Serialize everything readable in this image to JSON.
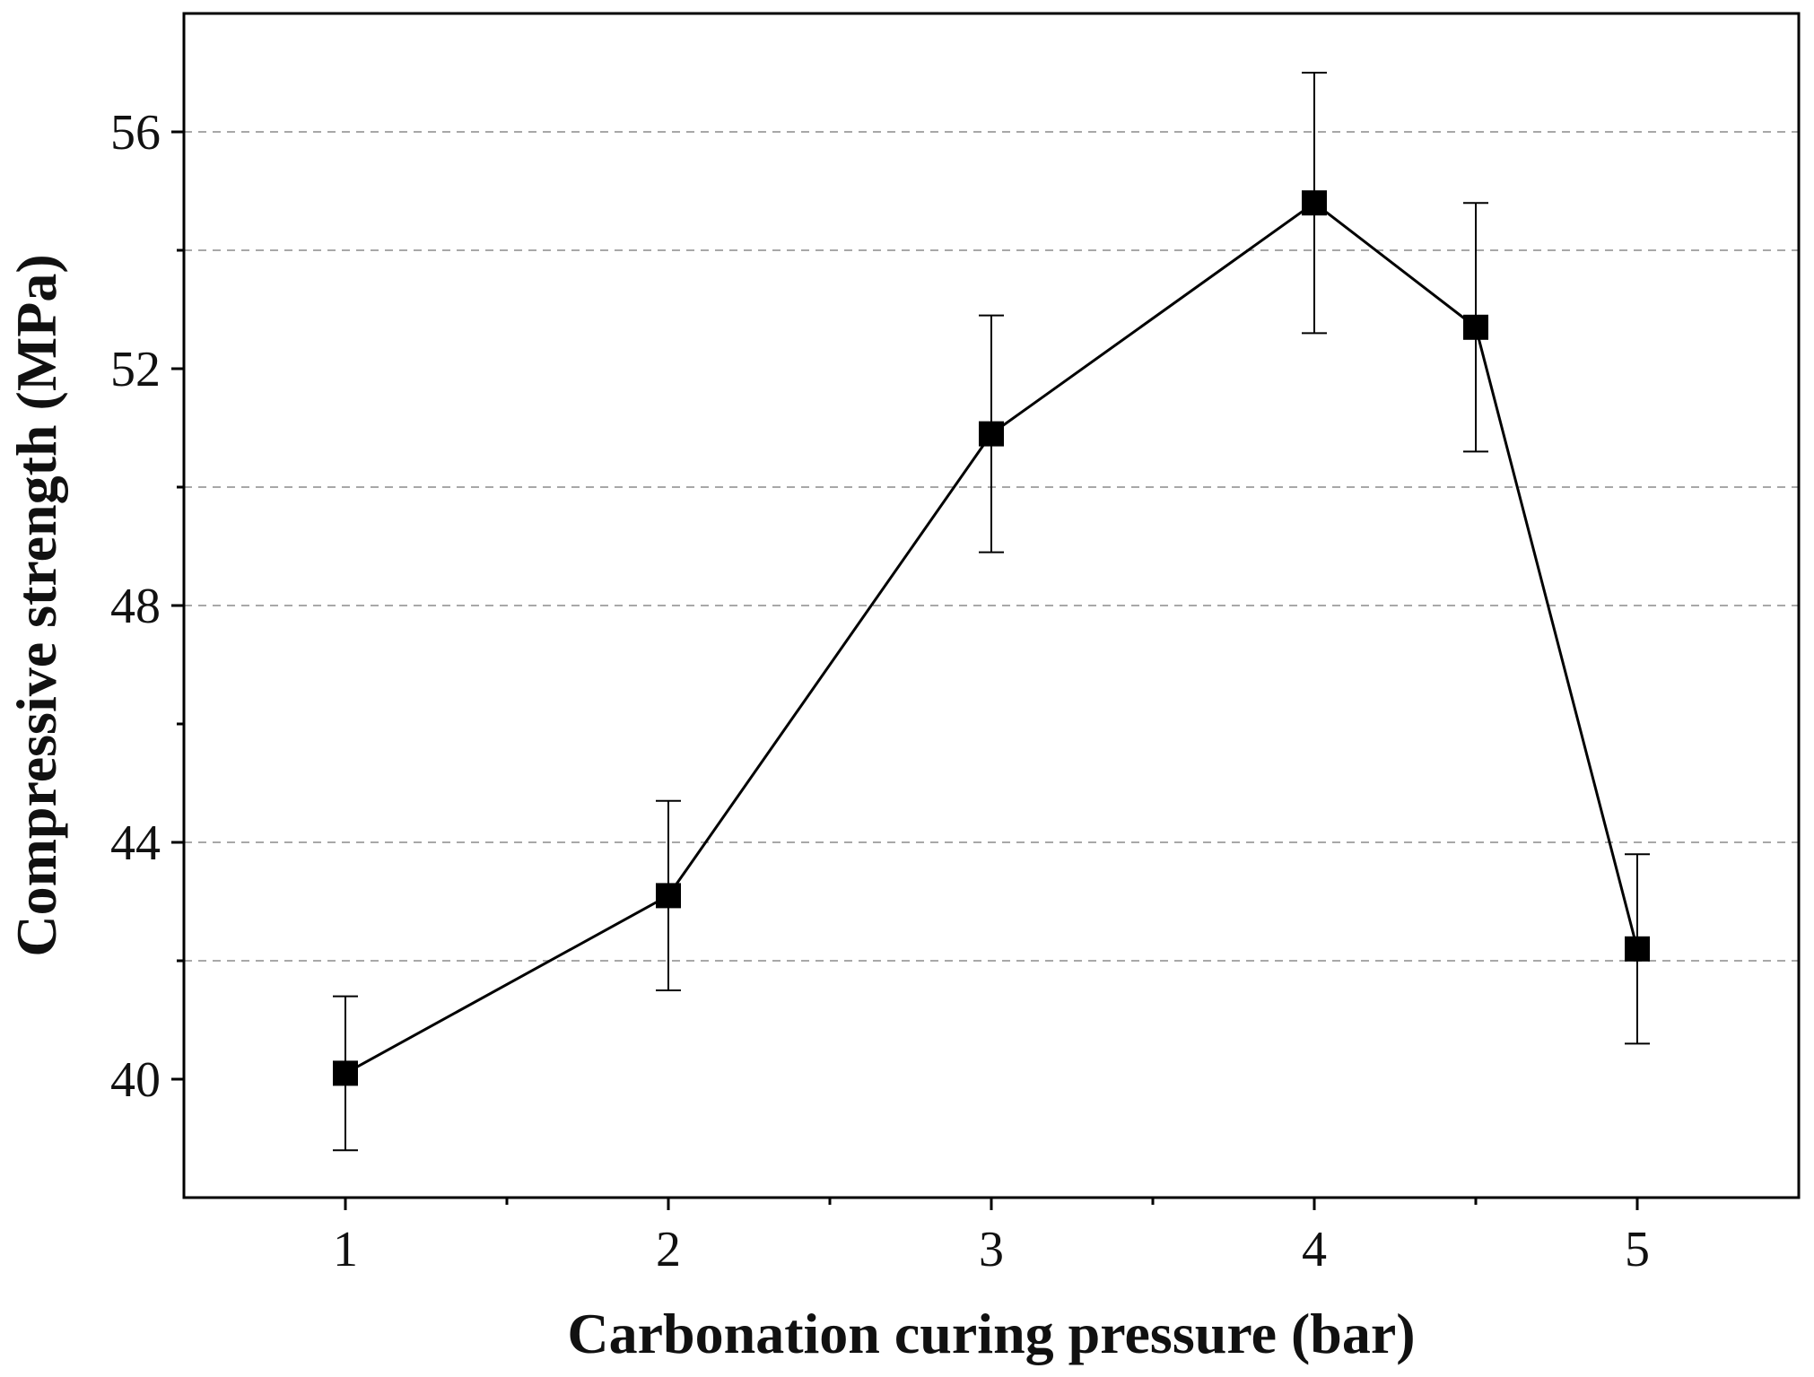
{
  "chart_data": {
    "type": "line",
    "title": "",
    "xlabel": "Carbonation curing pressure (bar)",
    "ylabel": "Compressive strength (MPa)",
    "xlim": [
      0.5,
      5.5
    ],
    "ylim": [
      38,
      58
    ],
    "x_ticks": [
      1,
      2,
      3,
      4,
      5
    ],
    "x_tick_labels": [
      "1",
      "2",
      "3",
      "4",
      "5"
    ],
    "x_minor_ticks": [
      1.5,
      2.5,
      3.5,
      4.5
    ],
    "y_ticks": [
      40,
      44,
      48,
      52,
      56
    ],
    "y_tick_labels": [
      "40",
      "44",
      "48",
      "52",
      "56"
    ],
    "y_minor_ticks": [
      42,
      46,
      50,
      54
    ],
    "gridlines_y": [
      42,
      44,
      48,
      50,
      54,
      56
    ],
    "grid": "horizontal dashed",
    "series": [
      {
        "name": "Compressive strength",
        "marker": "square",
        "color": "#000000",
        "x": [
          1,
          2,
          3,
          4,
          4.5,
          5
        ],
        "values": [
          40.1,
          43.1,
          50.9,
          54.8,
          52.7,
          42.2
        ],
        "error_low": [
          38.8,
          41.5,
          48.9,
          52.6,
          50.6,
          40.6
        ],
        "error_high": [
          41.4,
          44.7,
          52.9,
          57.0,
          54.8,
          43.8
        ]
      }
    ]
  }
}
